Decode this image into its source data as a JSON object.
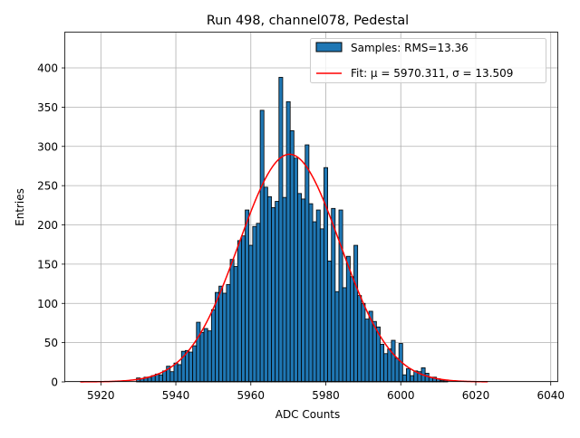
{
  "chart_data": {
    "type": "bar",
    "title": "Run 498, channel078, Pedestal",
    "xlabel": "ADC Counts",
    "ylabel": "Entries",
    "xlim": [
      5910.5,
      6042.0
    ],
    "ylim": [
      0,
      445
    ],
    "xticks": [
      5920,
      5940,
      5960,
      5980,
      6000,
      6020,
      6040
    ],
    "yticks": [
      0,
      50,
      100,
      150,
      200,
      250,
      300,
      350,
      400
    ],
    "grid": true,
    "legend_position": "top-right",
    "bin_width": 1,
    "bins": [
      {
        "x": 5930,
        "y": 5
      },
      {
        "x": 5931,
        "y": 4
      },
      {
        "x": 5932,
        "y": 6
      },
      {
        "x": 5933,
        "y": 6
      },
      {
        "x": 5934,
        "y": 8
      },
      {
        "x": 5935,
        "y": 10
      },
      {
        "x": 5936,
        "y": 9
      },
      {
        "x": 5937,
        "y": 14
      },
      {
        "x": 5938,
        "y": 20
      },
      {
        "x": 5939,
        "y": 13
      },
      {
        "x": 5940,
        "y": 24
      },
      {
        "x": 5941,
        "y": 22
      },
      {
        "x": 5942,
        "y": 39
      },
      {
        "x": 5943,
        "y": 40
      },
      {
        "x": 5944,
        "y": 38
      },
      {
        "x": 5945,
        "y": 46
      },
      {
        "x": 5946,
        "y": 76
      },
      {
        "x": 5947,
        "y": 63
      },
      {
        "x": 5948,
        "y": 68
      },
      {
        "x": 5949,
        "y": 65
      },
      {
        "x": 5950,
        "y": 92
      },
      {
        "x": 5951,
        "y": 114
      },
      {
        "x": 5952,
        "y": 122
      },
      {
        "x": 5953,
        "y": 113
      },
      {
        "x": 5954,
        "y": 124
      },
      {
        "x": 5955,
        "y": 156
      },
      {
        "x": 5956,
        "y": 147
      },
      {
        "x": 5957,
        "y": 180
      },
      {
        "x": 5958,
        "y": 186
      },
      {
        "x": 5959,
        "y": 219
      },
      {
        "x": 5960,
        "y": 174
      },
      {
        "x": 5961,
        "y": 198
      },
      {
        "x": 5962,
        "y": 202
      },
      {
        "x": 5963,
        "y": 346
      },
      {
        "x": 5964,
        "y": 248
      },
      {
        "x": 5965,
        "y": 236
      },
      {
        "x": 5966,
        "y": 222
      },
      {
        "x": 5967,
        "y": 230
      },
      {
        "x": 5968,
        "y": 388
      },
      {
        "x": 5969,
        "y": 235
      },
      {
        "x": 5970,
        "y": 357
      },
      {
        "x": 5971,
        "y": 320
      },
      {
        "x": 5972,
        "y": 285
      },
      {
        "x": 5973,
        "y": 240
      },
      {
        "x": 5974,
        "y": 233
      },
      {
        "x": 5975,
        "y": 302
      },
      {
        "x": 5976,
        "y": 227
      },
      {
        "x": 5977,
        "y": 204
      },
      {
        "x": 5978,
        "y": 219
      },
      {
        "x": 5979,
        "y": 195
      },
      {
        "x": 5980,
        "y": 273
      },
      {
        "x": 5981,
        "y": 154
      },
      {
        "x": 5982,
        "y": 221
      },
      {
        "x": 5983,
        "y": 115
      },
      {
        "x": 5984,
        "y": 219
      },
      {
        "x": 5985,
        "y": 120
      },
      {
        "x": 5986,
        "y": 160
      },
      {
        "x": 5987,
        "y": 134
      },
      {
        "x": 5988,
        "y": 174
      },
      {
        "x": 5989,
        "y": 110
      },
      {
        "x": 5990,
        "y": 100
      },
      {
        "x": 5991,
        "y": 80
      },
      {
        "x": 5992,
        "y": 90
      },
      {
        "x": 5993,
        "y": 77
      },
      {
        "x": 5994,
        "y": 70
      },
      {
        "x": 5995,
        "y": 48
      },
      {
        "x": 5996,
        "y": 36
      },
      {
        "x": 5997,
        "y": 42
      },
      {
        "x": 5998,
        "y": 53
      },
      {
        "x": 5999,
        "y": 30
      },
      {
        "x": 6000,
        "y": 49
      },
      {
        "x": 6001,
        "y": 9
      },
      {
        "x": 6002,
        "y": 17
      },
      {
        "x": 6003,
        "y": 8
      },
      {
        "x": 6004,
        "y": 14
      },
      {
        "x": 6005,
        "y": 13
      },
      {
        "x": 6006,
        "y": 18
      },
      {
        "x": 6007,
        "y": 11
      },
      {
        "x": 6008,
        "y": 6
      },
      {
        "x": 6009,
        "y": 6
      },
      {
        "x": 6010,
        "y": 4
      },
      {
        "x": 6011,
        "y": 2
      },
      {
        "x": 6012,
        "y": 2
      }
    ],
    "fit": {
      "mu": 5970.311,
      "sigma": 13.509,
      "amplitude": 290,
      "x_range": [
        5914.5,
        6023.2
      ]
    },
    "series": [
      {
        "name": "Samples: RMS=13.36",
        "kind": "histogram",
        "color": "#1f77b4",
        "edge_color": "#000000"
      },
      {
        "name": "Fit: μ = 5970.311, σ = 13.509",
        "kind": "line",
        "color": "#ff0000"
      }
    ]
  }
}
